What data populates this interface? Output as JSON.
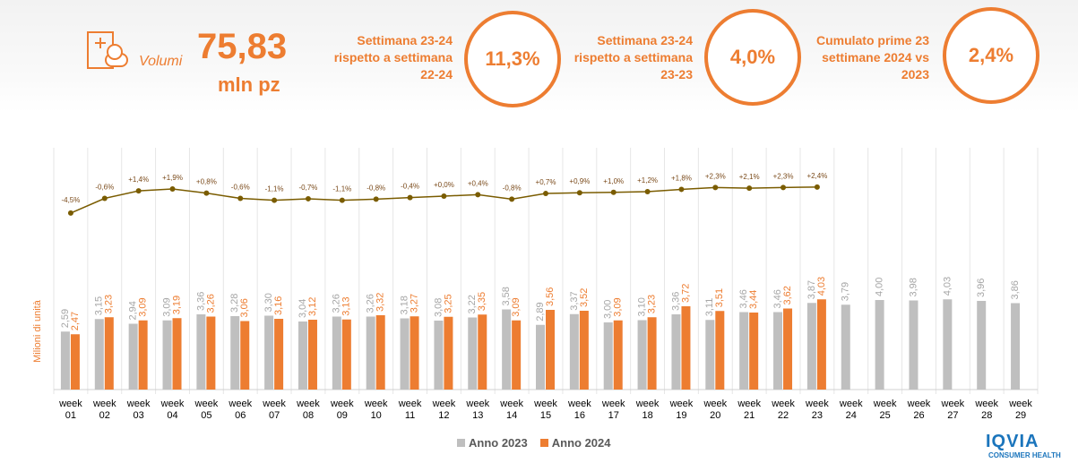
{
  "kpi": {
    "icon_label": "Volumi",
    "volume": "75,83",
    "volume_unit": "mln pz",
    "boxes": [
      {
        "label": "Settimana 23-24 rispetto a settimana 22-24",
        "value": "11,3%"
      },
      {
        "label": "Settimana 23-24 rispetto a settimana 23-23",
        "value": "4,0%"
      },
      {
        "label": "Cumulato prime 23 settimane 2024 vs 2023",
        "value": "2,4%"
      }
    ]
  },
  "chart_data": {
    "type": "bar",
    "y_label": "Milioni di unità",
    "categories": [
      "week 01",
      "week 02",
      "week 03",
      "week 04",
      "week 05",
      "week 06",
      "week 07",
      "week 08",
      "week 09",
      "week 10",
      "week 11",
      "week 12",
      "week 13",
      "week 14",
      "week 15",
      "week 16",
      "week 17",
      "week 18",
      "week 19",
      "week 20",
      "week 21",
      "week 22",
      "week 23",
      "week 24",
      "week 25",
      "week 26",
      "week 27",
      "week 28",
      "week 29"
    ],
    "series": [
      {
        "name": "Anno 2023",
        "color": "#bfbfbf",
        "values": [
          2.59,
          3.15,
          2.94,
          3.09,
          3.36,
          3.28,
          3.3,
          3.04,
          3.26,
          3.26,
          3.18,
          3.08,
          3.22,
          3.58,
          2.89,
          3.37,
          3.0,
          3.1,
          3.36,
          3.11,
          3.46,
          3.46,
          3.87,
          3.79,
          4.0,
          3.98,
          4.03,
          3.96,
          3.86
        ],
        "value_labels": [
          "2,59",
          "3,15",
          "2,94",
          "3,09",
          "3,36",
          "3,28",
          "3,30",
          "3,04",
          "3,26",
          "3,26",
          "3,18",
          "3,08",
          "3,22",
          "3,58",
          "2,89",
          "3,37",
          "3,00",
          "3,10",
          "3,36",
          "3,11",
          "3,46",
          "3,46",
          "3,87",
          "3,79",
          "4,00",
          "3,98",
          "4,03",
          "3,96",
          "3,86"
        ]
      },
      {
        "name": "Anno 2024",
        "color": "#ed7d31",
        "values": [
          2.47,
          3.23,
          3.09,
          3.19,
          3.26,
          3.06,
          3.16,
          3.12,
          3.13,
          3.32,
          3.27,
          3.25,
          3.35,
          3.09,
          3.56,
          3.52,
          3.09,
          3.23,
          3.72,
          3.51,
          3.44,
          3.62,
          4.03,
          null,
          null,
          null,
          null,
          null,
          null
        ],
        "value_labels": [
          "2,47",
          "3,23",
          "3,09",
          "3,19",
          "3,26",
          "3,06",
          "3,16",
          "3,12",
          "3,13",
          "3,32",
          "3,27",
          "3,25",
          "3,35",
          "3,09",
          "3,56",
          "3,52",
          "3,09",
          "3,23",
          "3,72",
          "3,51",
          "3,44",
          "3,62",
          "4,03",
          null,
          null,
          null,
          null,
          null,
          null
        ]
      }
    ],
    "growth": {
      "type": "line",
      "color": "#7a5c00",
      "values": [
        -4.5,
        -0.6,
        1.4,
        1.9,
        0.8,
        -0.6,
        -1.1,
        -0.7,
        -1.1,
        -0.8,
        -0.4,
        0.0,
        0.4,
        -0.8,
        0.7,
        0.9,
        1.0,
        1.2,
        1.8,
        2.3,
        2.1,
        2.3,
        2.4
      ],
      "value_labels": [
        "-4,5%",
        "-0,6%",
        "+1,4%",
        "+1,9%",
        "+0,8%",
        "-0,6%",
        "-1,1%",
        "-0,7%",
        "-1,1%",
        "-0,8%",
        "-0,4%",
        "+0,0%",
        "+0,4%",
        "-0,8%",
        "+0,7%",
        "+0,9%",
        "+1,0%",
        "+1,2%",
        "+1,8%",
        "+2,3%",
        "+2,1%",
        "+2,3%",
        "+2,4%"
      ]
    }
  },
  "logo": {
    "name": "IQVIA",
    "sub": "CONSUMER HEALTH"
  }
}
